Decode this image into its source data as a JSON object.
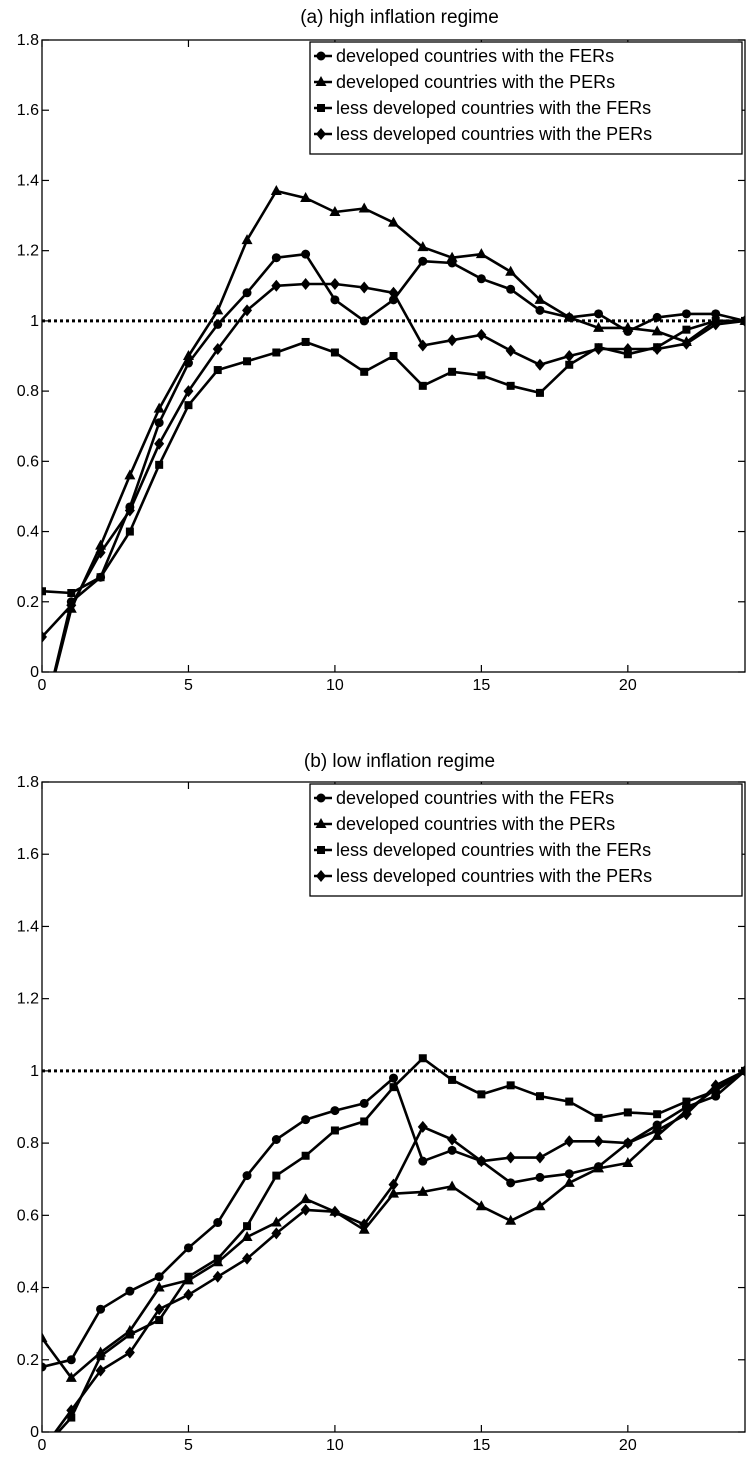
{
  "chart_data": [
    {
      "type": "line",
      "title": "(a) high inflation regime",
      "xlabel": "",
      "ylabel": "",
      "xlim": [
        0,
        24
      ],
      "ylim": [
        0,
        1.8
      ],
      "xticks": [
        0,
        5,
        10,
        15,
        20
      ],
      "yticks": [
        0,
        0.2,
        0.4,
        0.6,
        0.8,
        1,
        1.2,
        1.4,
        1.6,
        1.8
      ],
      "xtick_labels": [
        "0",
        "5",
        "10",
        "15",
        "20"
      ],
      "ytick_labels": [
        "0",
        "0.2",
        "0.4",
        "0.6",
        "0.8",
        "1",
        "1.2",
        "1.4",
        "1.6",
        "1.8"
      ],
      "grid": false,
      "legend_position": "top-right",
      "reference_line": {
        "y": 1,
        "style": "dotted"
      },
      "x": [
        0,
        1,
        2,
        3,
        4,
        5,
        6,
        7,
        8,
        9,
        10,
        11,
        12,
        13,
        14,
        15,
        16,
        17,
        18,
        19,
        20,
        21,
        22,
        23,
        24
      ],
      "series": [
        {
          "name": "developed countries with the FERs",
          "marker": "circle",
          "values": [
            -0.15,
            0.2,
            0.27,
            0.47,
            0.71,
            0.88,
            0.99,
            1.08,
            1.18,
            1.19,
            1.06,
            1.0,
            1.06,
            1.17,
            1.165,
            1.12,
            1.09,
            1.03,
            1.01,
            1.02,
            0.97,
            1.01,
            1.02,
            1.02,
            1.0
          ]
        },
        {
          "name": "developed countries with the PERs",
          "marker": "triangle",
          "values": [
            -0.15,
            0.18,
            0.36,
            0.56,
            0.75,
            0.9,
            1.03,
            1.23,
            1.37,
            1.35,
            1.31,
            1.32,
            1.28,
            1.21,
            1.18,
            1.19,
            1.14,
            1.06,
            1.01,
            0.98,
            0.98,
            0.97,
            0.94,
            1.0,
            1.0
          ]
        },
        {
          "name": "less developed countries with the FERs",
          "marker": "square",
          "values": [
            0.23,
            0.225,
            0.27,
            0.4,
            0.59,
            0.76,
            0.86,
            0.885,
            0.91,
            0.94,
            0.91,
            0.855,
            0.9,
            0.815,
            0.855,
            0.845,
            0.815,
            0.795,
            0.875,
            0.925,
            0.905,
            0.925,
            0.975,
            1.0,
            1.0
          ]
        },
        {
          "name": "less developed countries with the PERs",
          "marker": "diamond",
          "values": [
            0.1,
            0.19,
            0.34,
            0.46,
            0.65,
            0.8,
            0.92,
            1.03,
            1.1,
            1.105,
            1.105,
            1.095,
            1.08,
            0.93,
            0.945,
            0.96,
            0.915,
            0.875,
            0.9,
            0.92,
            0.92,
            0.92,
            0.935,
            0.99,
            1.0
          ]
        }
      ]
    },
    {
      "type": "line",
      "title": "(b) low inflation regime",
      "xlabel": "",
      "ylabel": "",
      "xlim": [
        0,
        24
      ],
      "ylim": [
        0,
        1.8
      ],
      "xticks": [
        0,
        5,
        10,
        15,
        20
      ],
      "yticks": [
        0,
        0.2,
        0.4,
        0.6,
        0.8,
        1,
        1.2,
        1.4,
        1.6,
        1.8
      ],
      "xtick_labels": [
        "0",
        "5",
        "10",
        "15",
        "20"
      ],
      "ytick_labels": [
        "0",
        "0.2",
        "0.4",
        "0.6",
        "0.8",
        "1",
        "1.2",
        "1.4",
        "1.6",
        "1.8"
      ],
      "grid": false,
      "legend_position": "top-right",
      "reference_line": {
        "y": 1,
        "style": "dotted"
      },
      "x": [
        0,
        1,
        2,
        3,
        4,
        5,
        6,
        7,
        8,
        9,
        10,
        11,
        12,
        13,
        14,
        15,
        16,
        17,
        18,
        19,
        20,
        21,
        22,
        23,
        24
      ],
      "series": [
        {
          "name": "developed countries with the FERs",
          "marker": "circle",
          "values": [
            0.18,
            0.2,
            0.34,
            0.39,
            0.43,
            0.51,
            0.58,
            0.71,
            0.81,
            0.865,
            0.89,
            0.91,
            0.98,
            0.75,
            0.78,
            0.75,
            0.69,
            0.705,
            0.715,
            0.735,
            0.8,
            0.85,
            0.9,
            0.93,
            1.0
          ]
        },
        {
          "name": "developed countries with the PERs",
          "marker": "triangle",
          "values": [
            0.26,
            0.15,
            0.22,
            0.28,
            0.4,
            0.42,
            0.47,
            0.54,
            0.58,
            0.645,
            0.61,
            0.56,
            0.66,
            0.665,
            0.68,
            0.625,
            0.585,
            0.625,
            0.69,
            0.73,
            0.745,
            0.82,
            0.89,
            0.95,
            1.0
          ]
        },
        {
          "name": "less developed countries with the FERs",
          "marker": "square",
          "values": [
            -0.05,
            0.04,
            0.21,
            0.27,
            0.31,
            0.43,
            0.48,
            0.57,
            0.71,
            0.765,
            0.835,
            0.86,
            0.955,
            1.035,
            0.975,
            0.935,
            0.96,
            0.93,
            0.915,
            0.87,
            0.885,
            0.88,
            0.915,
            0.945,
            1.0
          ]
        },
        {
          "name": "less developed countries with the PERs",
          "marker": "diamond",
          "values": [
            -0.05,
            0.06,
            0.17,
            0.22,
            0.34,
            0.38,
            0.43,
            0.48,
            0.55,
            0.615,
            0.61,
            0.575,
            0.685,
            0.845,
            0.81,
            0.75,
            0.76,
            0.76,
            0.805,
            0.805,
            0.8,
            0.835,
            0.88,
            0.96,
            1.0
          ]
        }
      ]
    }
  ]
}
